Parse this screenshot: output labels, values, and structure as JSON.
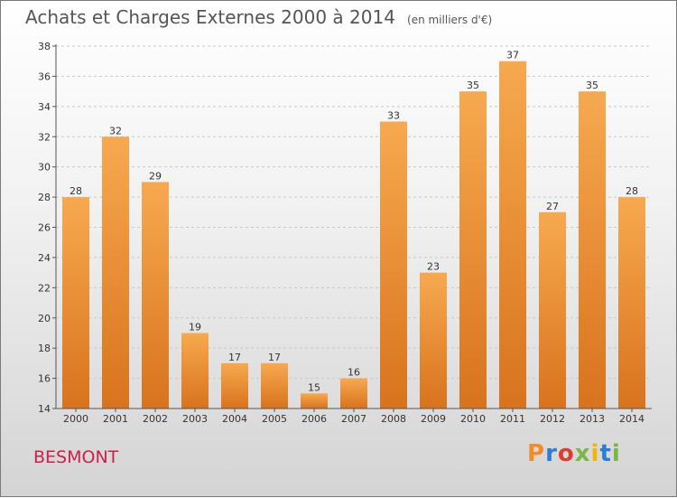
{
  "header": {
    "title": "Achats et Charges Externes 2000 à 2014",
    "subtitle": "(en milliers d'€)"
  },
  "footer": {
    "location": "BESMONT",
    "brand": "Proxiti",
    "brand_colors": [
      "#f28c28",
      "#2a7fd4",
      "#e03c31",
      "#7ab648",
      "#f2b705",
      "#2a7fd4",
      "#7ab648"
    ]
  },
  "colors": {
    "bar_top": "#f7a94f",
    "bar_bottom": "#d8731d",
    "grid": "#c8c8c8",
    "axis": "#555555"
  },
  "chart_data": {
    "type": "bar",
    "title": "Achats et Charges Externes 2000 à 2014",
    "subtitle": "(en milliers d'€)",
    "categories": [
      "2000",
      "2001",
      "2002",
      "2003",
      "2004",
      "2005",
      "2006",
      "2007",
      "2008",
      "2009",
      "2010",
      "2011",
      "2012",
      "2013",
      "2014"
    ],
    "values": [
      28,
      32,
      29,
      19,
      17,
      17,
      15,
      16,
      33,
      23,
      35,
      37,
      27,
      35,
      28
    ],
    "ylim": [
      14,
      38
    ],
    "yticks": [
      14,
      16,
      18,
      20,
      22,
      24,
      26,
      28,
      30,
      32,
      34,
      36,
      38
    ],
    "grid": true,
    "xlabel": "",
    "ylabel": ""
  }
}
